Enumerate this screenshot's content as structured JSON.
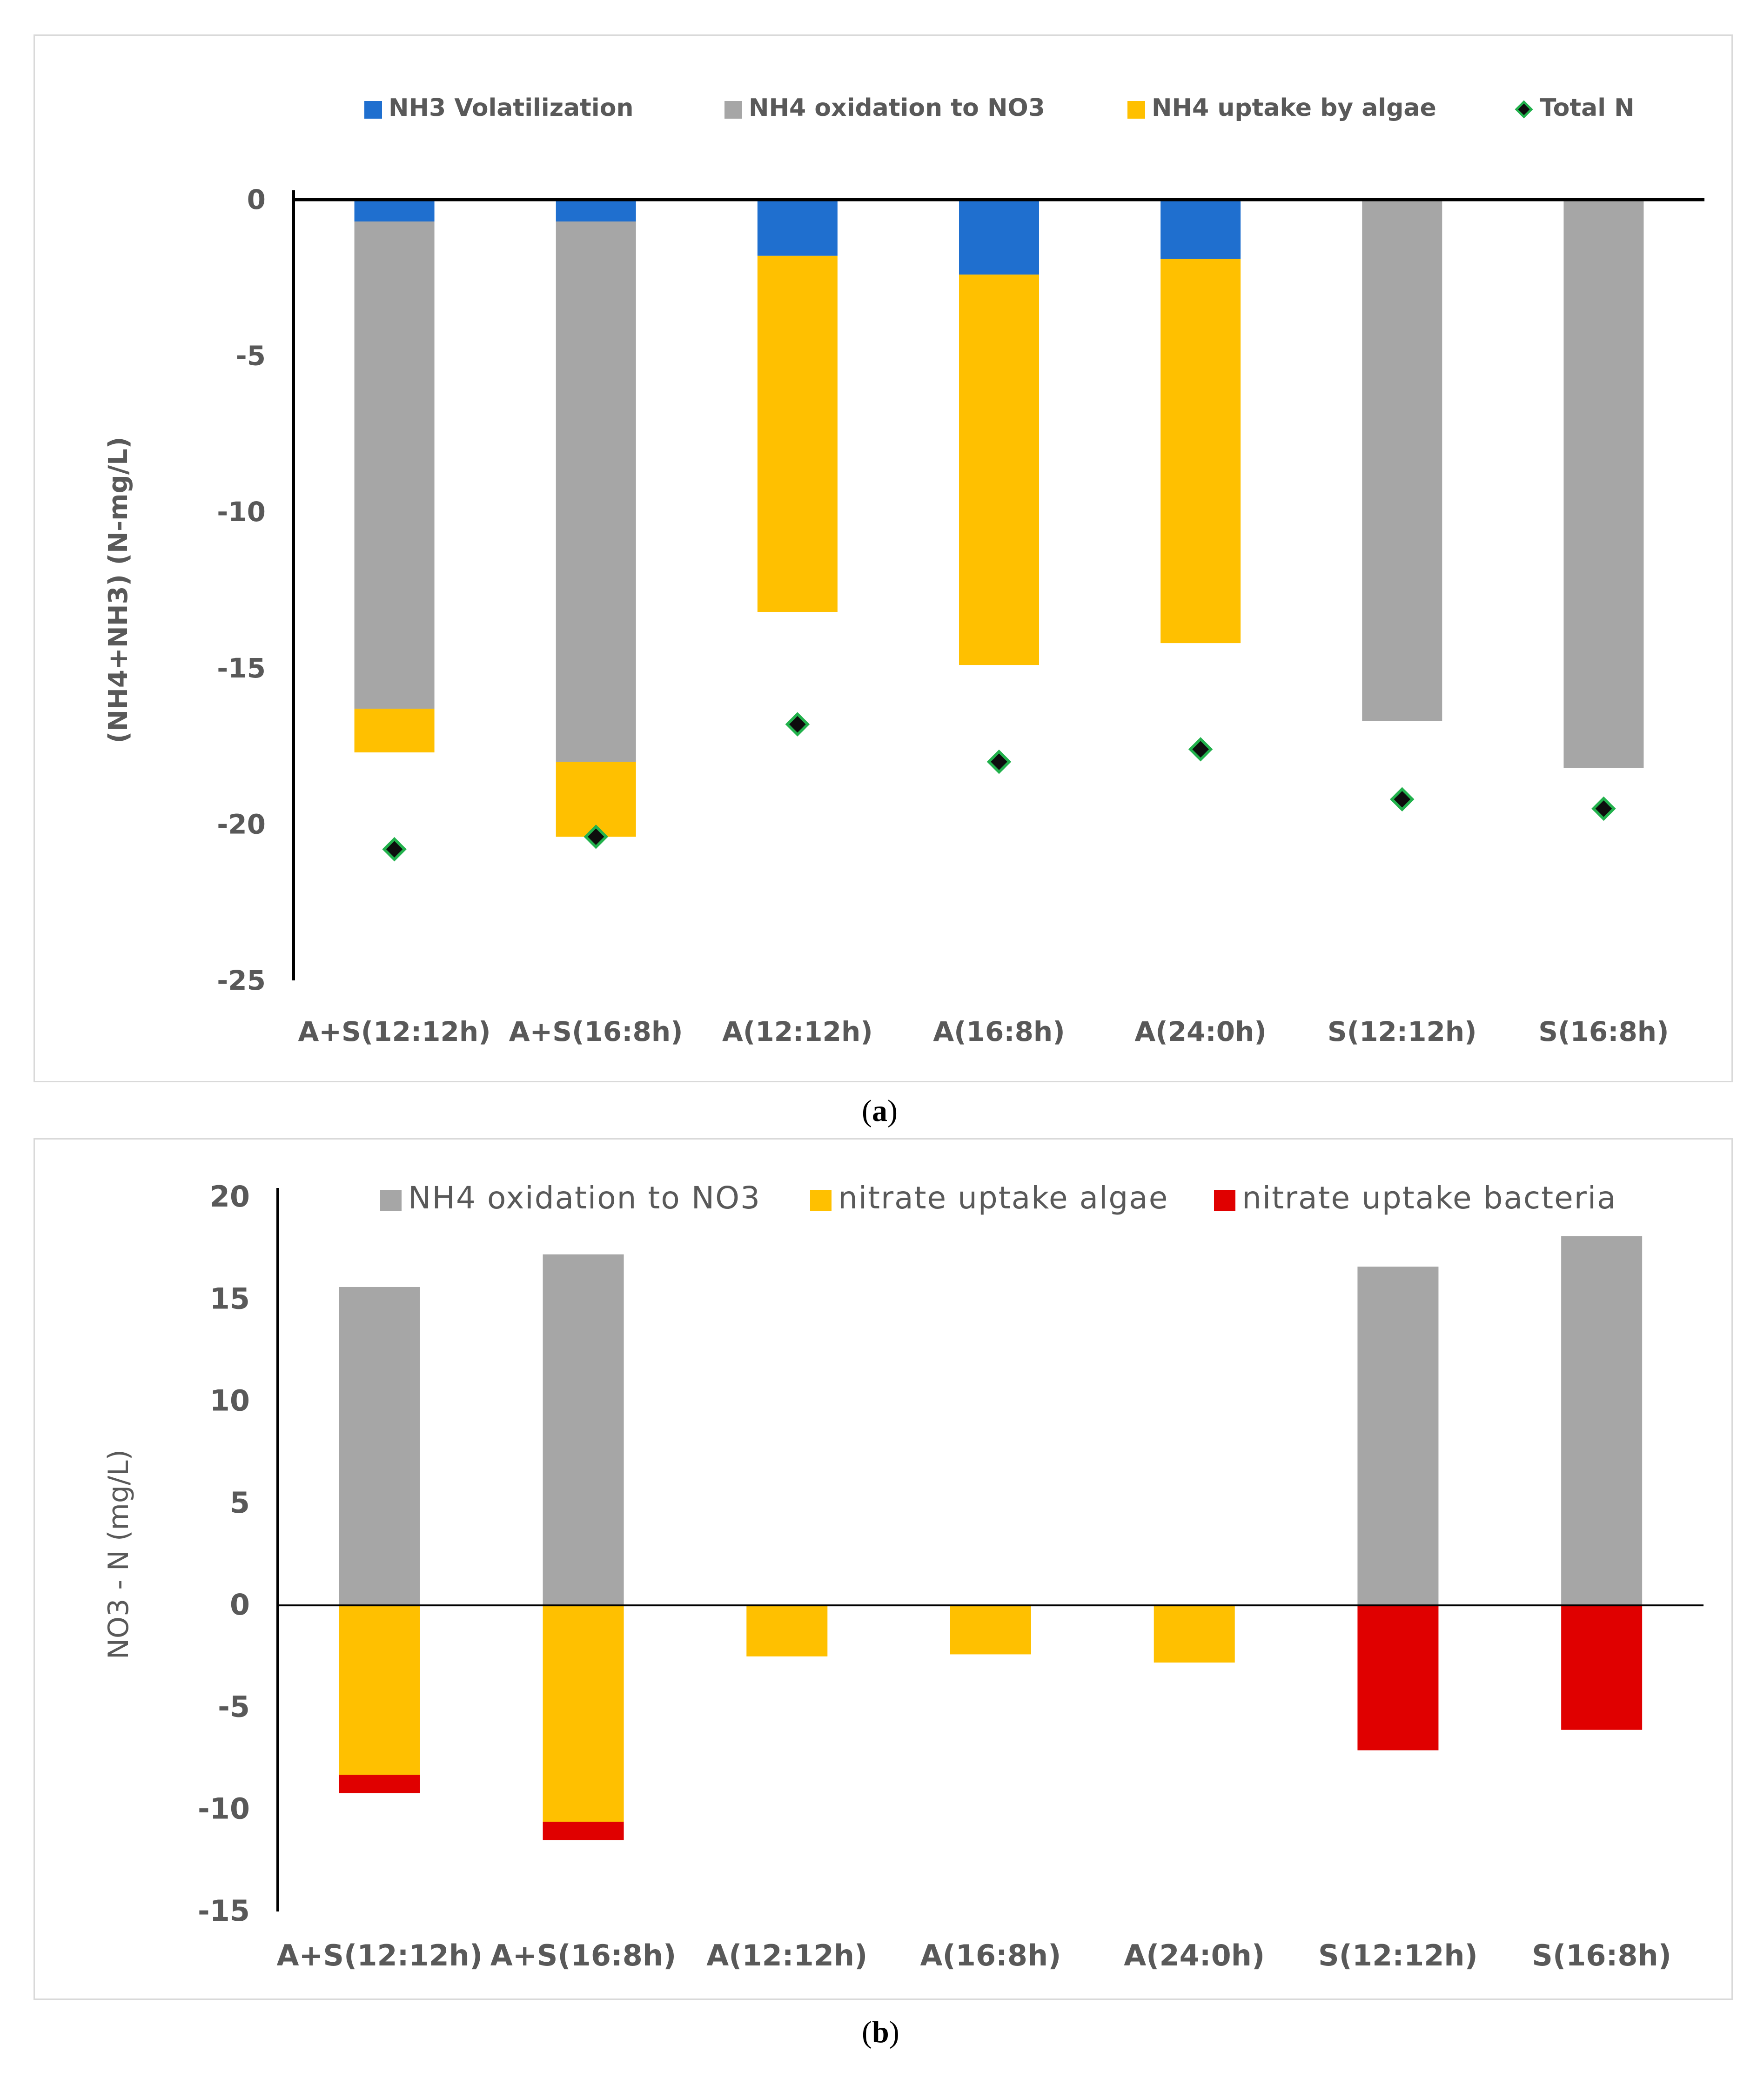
{
  "chart_data": [
    {
      "id": "a",
      "type": "bar",
      "stacked": true,
      "caption": "a",
      "ylabel": "(NH4+NH3) (N-mg/L)",
      "xlabel": "",
      "ylim": [
        -25,
        0
      ],
      "yticks": [
        0,
        -5,
        -10,
        -15,
        -20,
        -25
      ],
      "categories": [
        "A+S(12:12h)",
        "A+S(16:8h)",
        "A(12:12h)",
        "A(16:8h)",
        "A(24:0h)",
        "S(12:12h)",
        "S(16:8h)"
      ],
      "series": [
        {
          "name": "NH3 Volatilization",
          "color": "#1f6fcf",
          "values": [
            -0.7,
            -0.7,
            -1.8,
            -2.4,
            -1.9,
            0,
            0
          ]
        },
        {
          "name": "NH4 oxidation to NO3",
          "color": "#a6a6a6",
          "values": [
            -15.6,
            -17.3,
            0,
            0,
            0,
            -16.7,
            -18.2
          ]
        },
        {
          "name": "NH4 uptake by algae",
          "color": "#ffc000",
          "values": [
            -1.4,
            -2.4,
            -11.4,
            -12.5,
            -12.3,
            0,
            0
          ]
        }
      ],
      "markers": {
        "name": "Total N",
        "color": "#0d0d0d",
        "edge": "#22b14c",
        "values": [
          -20.8,
          -20.4,
          -16.8,
          -18.0,
          -17.6,
          -19.2,
          -19.5
        ]
      },
      "legend": "top"
    },
    {
      "id": "b",
      "type": "bar",
      "stacked": true,
      "caption": "b",
      "ylabel": "NO3 - N (mg/L)",
      "xlabel": "",
      "ylim": [
        -15,
        20
      ],
      "yticks": [
        20,
        15,
        10,
        5,
        0,
        -5,
        -10,
        -15
      ],
      "categories": [
        "A+S(12:12h)",
        "A+S(16:8h)",
        "A(12:12h)",
        "A(16:8h)",
        "A(24:0h)",
        "S(12:12h)",
        "S(16:8h)"
      ],
      "series": [
        {
          "name": "NH4 oxidation to NO3",
          "color": "#a6a6a6",
          "values": [
            15.6,
            17.2,
            0,
            0,
            0,
            16.6,
            18.1
          ]
        },
        {
          "name": "nitrate uptake algae",
          "color": "#ffc000",
          "values": [
            -8.3,
            -10.6,
            -2.5,
            -2.4,
            -2.8,
            0,
            0
          ]
        },
        {
          "name": "nitrate uptake bacteria",
          "color": "#e00000",
          "values": [
            -0.9,
            -0.9,
            0,
            0,
            0,
            -7.1,
            -6.1
          ]
        }
      ],
      "legend": "top"
    }
  ]
}
